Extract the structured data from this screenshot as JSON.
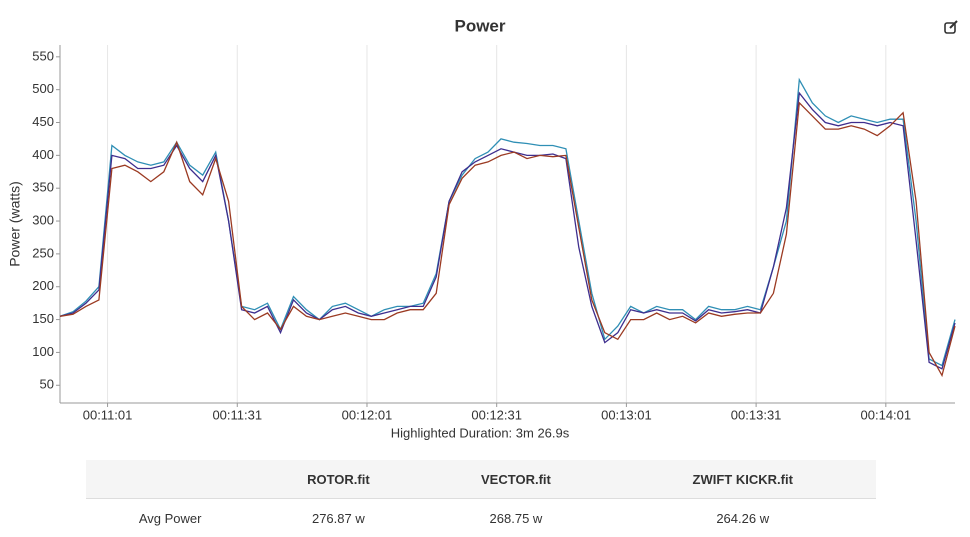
{
  "chart_data": {
    "type": "line",
    "title": "Power",
    "y_label": "Power (watts)",
    "x_label": "Highlighted Duration: 3m 26.9s",
    "x": [
      650,
      653,
      656,
      659,
      662,
      665,
      668,
      671,
      674,
      677,
      680,
      683,
      686,
      689,
      692,
      695,
      698,
      701,
      704,
      707,
      710,
      713,
      716,
      719,
      722,
      725,
      728,
      731,
      734,
      737,
      740,
      743,
      746,
      749,
      752,
      755,
      758,
      761,
      764,
      767,
      770,
      773,
      776,
      779,
      782,
      785,
      788,
      791,
      794,
      797,
      800,
      803,
      806,
      809,
      812,
      815,
      818,
      821,
      824,
      827,
      830,
      833,
      836,
      839,
      842,
      845,
      848,
      851,
      854,
      857
    ],
    "xlim": [
      650,
      857
    ],
    "xticks": [
      {
        "value": 661,
        "label": "00:11:01"
      },
      {
        "value": 691,
        "label": "00:11:31"
      },
      {
        "value": 721,
        "label": "00:12:01"
      },
      {
        "value": 751,
        "label": "00:12:31"
      },
      {
        "value": 781,
        "label": "00:13:01"
      },
      {
        "value": 811,
        "label": "00:13:31"
      },
      {
        "value": 841,
        "label": "00:14:01"
      }
    ],
    "ylim": [
      23,
      568
    ],
    "yticks": [
      50,
      100,
      150,
      200,
      250,
      300,
      350,
      400,
      450,
      500,
      550
    ],
    "grid": true,
    "series": [
      {
        "name": "ROTOR.fit",
        "color": "#2f8fb5",
        "values": [
          155,
          162,
          178,
          200,
          415,
          400,
          390,
          385,
          390,
          420,
          385,
          370,
          405,
          300,
          170,
          165,
          175,
          135,
          185,
          165,
          150,
          170,
          175,
          165,
          155,
          165,
          170,
          170,
          175,
          220,
          330,
          370,
          395,
          405,
          425,
          420,
          418,
          415,
          415,
          410,
          300,
          190,
          120,
          140,
          170,
          160,
          170,
          165,
          165,
          150,
          170,
          165,
          165,
          170,
          165,
          230,
          300,
          515,
          480,
          460,
          450,
          460,
          455,
          450,
          455,
          455,
          300,
          90,
          80,
          150
        ]
      },
      {
        "name": "VECTOR.fit",
        "color": "#3e2e8e",
        "values": [
          155,
          160,
          175,
          195,
          400,
          395,
          380,
          380,
          385,
          415,
          380,
          360,
          400,
          300,
          165,
          160,
          170,
          130,
          180,
          160,
          150,
          165,
          170,
          160,
          155,
          160,
          165,
          170,
          170,
          215,
          330,
          375,
          390,
          400,
          410,
          405,
          400,
          400,
          402,
          395,
          260,
          170,
          115,
          130,
          165,
          160,
          165,
          160,
          160,
          148,
          165,
          160,
          162,
          165,
          160,
          230,
          320,
          495,
          470,
          450,
          445,
          450,
          450,
          445,
          450,
          445,
          270,
          85,
          75,
          145
        ]
      },
      {
        "name": "ZWIFT KICKR.fit",
        "color": "#9b3a22",
        "values": [
          155,
          158,
          170,
          180,
          380,
          385,
          375,
          360,
          375,
          420,
          360,
          340,
          395,
          330,
          170,
          150,
          160,
          135,
          170,
          155,
          150,
          155,
          160,
          155,
          150,
          150,
          160,
          165,
          165,
          190,
          325,
          365,
          385,
          390,
          400,
          405,
          395,
          400,
          398,
          400,
          290,
          180,
          130,
          120,
          150,
          150,
          160,
          150,
          155,
          145,
          160,
          155,
          158,
          160,
          160,
          190,
          280,
          480,
          460,
          440,
          440,
          445,
          440,
          430,
          445,
          465,
          330,
          100,
          65,
          140
        ]
      }
    ]
  },
  "table": {
    "row_label": "Avg Power",
    "cells": [
      "276.87 w",
      "268.75 w",
      "264.26 w"
    ]
  }
}
